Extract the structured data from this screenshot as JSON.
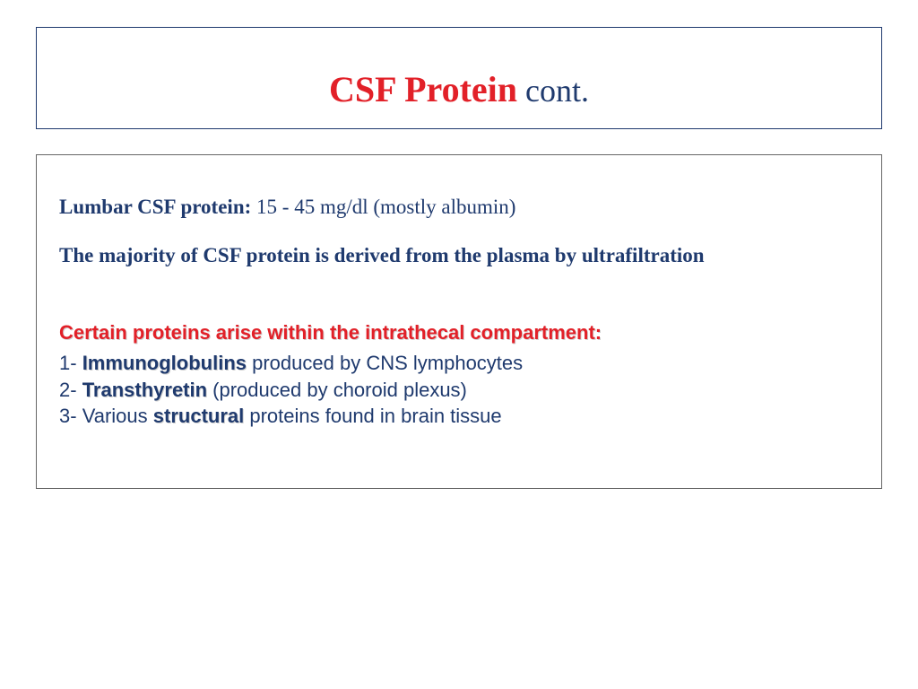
{
  "colors": {
    "red": "#e22028",
    "blue": "#1f3a6e",
    "border": "#666666",
    "background": "#ffffff"
  },
  "title": {
    "main": "CSF Protein",
    "cont": " cont."
  },
  "content": {
    "line1_label": "Lumbar CSF protein: ",
    "line1_value": "15 - 45 mg/dl  (mostly albumin)",
    "line2": "The majority of CSF protein is derived from the plasma by ultrafiltration",
    "subhead": "Certain proteins arise within the intrathecal compartment:",
    "items": [
      {
        "num": "1- ",
        "lead": "Immunoglobulins ",
        "rest": "produced by CNS lymphocytes"
      },
      {
        "num": "2- ",
        "lead": "Transthyretin ",
        "rest": "(produced by choroid plexus)"
      },
      {
        "num": "3- ",
        "lead_prefix": "Various ",
        "lead": "structural ",
        "rest": "proteins found in brain tissue"
      }
    ]
  }
}
